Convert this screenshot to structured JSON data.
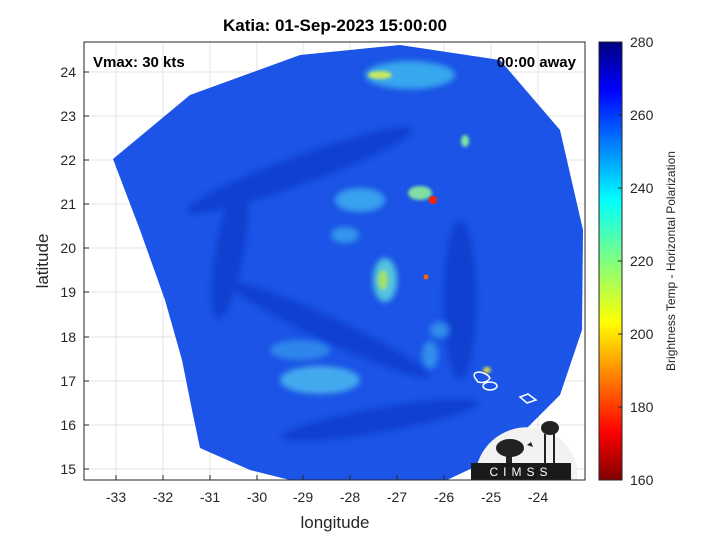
{
  "title": "Katia: 01-Sep-2023 15:00:00",
  "vmax_label": "Vmax: 30 kts",
  "time_away_label": "00:00 away",
  "xlabel": "longitude",
  "ylabel": "latitude",
  "x_ticks": [
    "-33",
    "-32",
    "-31",
    "-30",
    "-29",
    "-28",
    "-27",
    "-26",
    "-25",
    "-24"
  ],
  "y_ticks": [
    "15",
    "16",
    "17",
    "18",
    "19",
    "20",
    "21",
    "22",
    "23",
    "24"
  ],
  "xlim": [
    -33.65,
    -22.95
  ],
  "ylim": [
    14.75,
    24.65
  ],
  "colorbar": {
    "label": "Brightness Temp - Horizontal Polarization",
    "range": [
      160,
      280
    ],
    "ticks": [
      "280",
      "260",
      "240",
      "220",
      "200",
      "180",
      "160"
    ]
  },
  "logo_text": "CIMSS",
  "colors": {
    "background_field": "#1b54e6",
    "cold_spot": "#ff0000",
    "land_outline": "#ffffff"
  }
}
